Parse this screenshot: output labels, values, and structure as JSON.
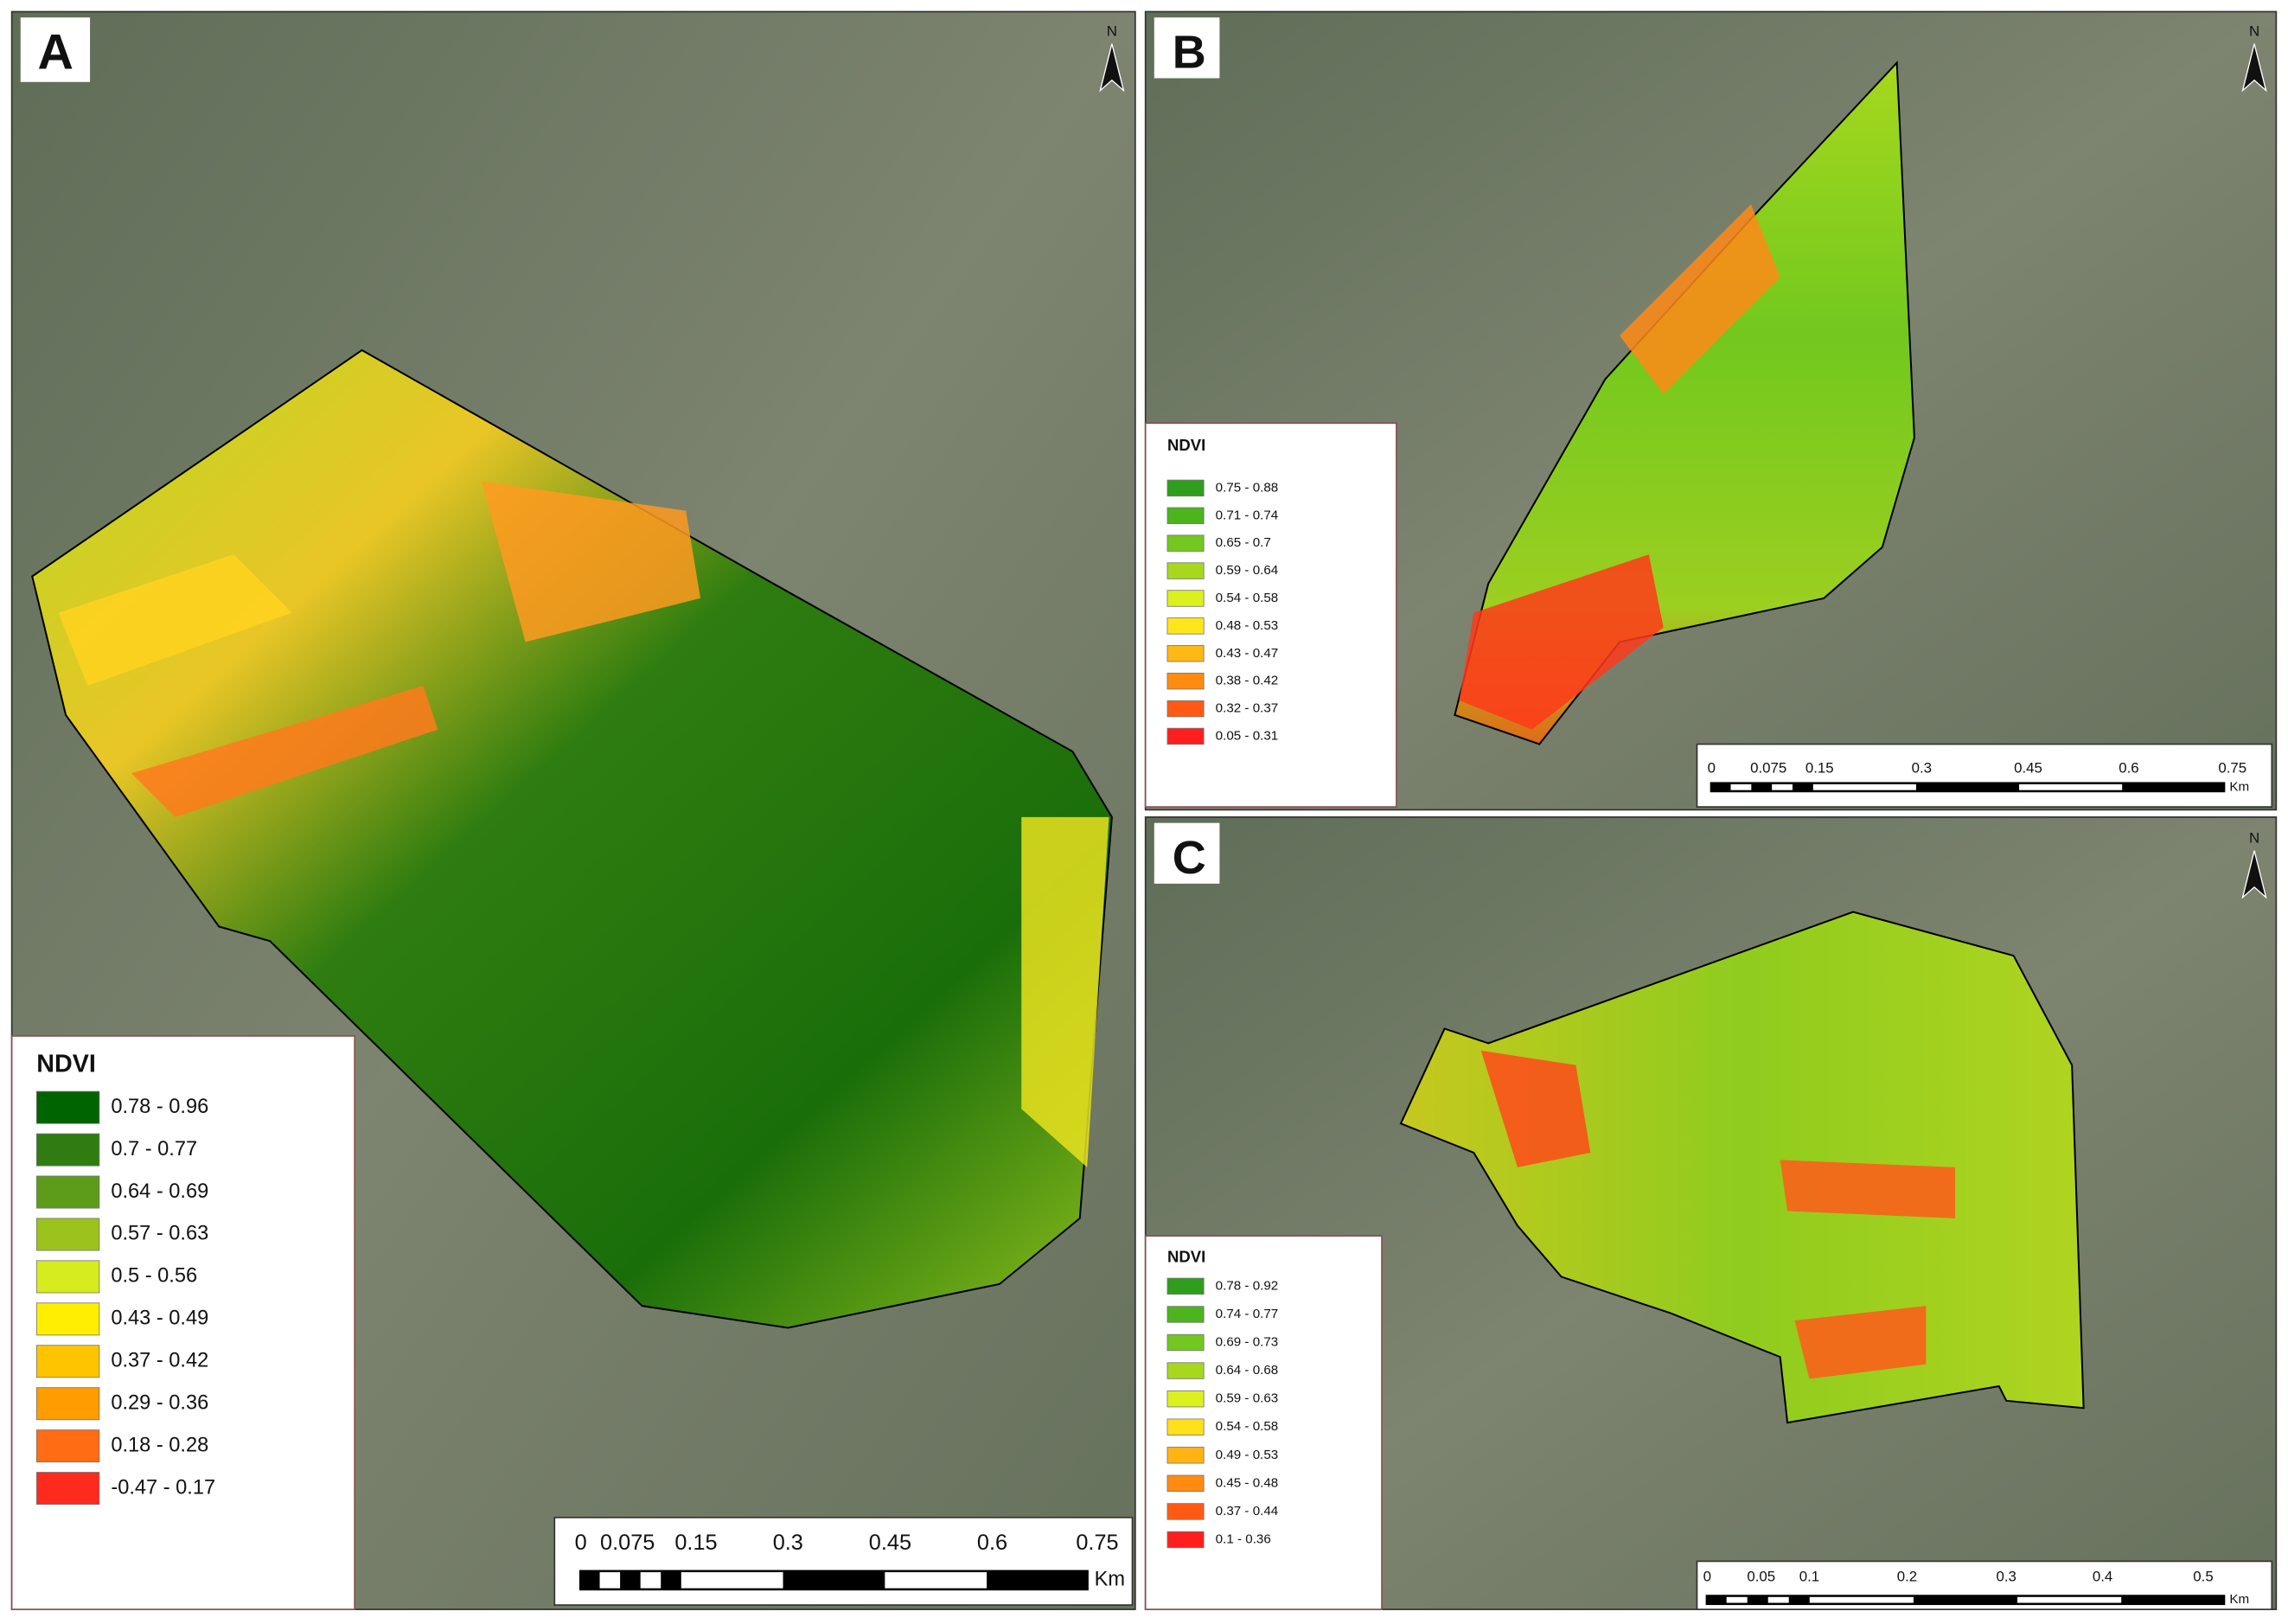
{
  "panels": [
    {
      "label": "A",
      "north": "N",
      "legend": {
        "title": "NDVI",
        "items": [
          {
            "label": "0.78 - 0.96",
            "color": "#006400"
          },
          {
            "label": "0.7 - 0.77",
            "color": "#2f7d10"
          },
          {
            "label": "0.64 - 0.69",
            "color": "#5c9c1a"
          },
          {
            "label": "0.57 - 0.63",
            "color": "#9cc21c"
          },
          {
            "label": "0.5 - 0.56",
            "color": "#d6ec1e"
          },
          {
            "label": "0.43 - 0.49",
            "color": "#ffee00"
          },
          {
            "label": "0.37 - 0.42",
            "color": "#ffc400"
          },
          {
            "label": "0.29 - 0.36",
            "color": "#ff9c00"
          },
          {
            "label": "0.18 - 0.28",
            "color": "#ff6c14"
          },
          {
            "label": "-0.47 - 0.17",
            "color": "#ff2a1e"
          }
        ]
      },
      "scale": {
        "labels": [
          "0",
          "0.075",
          "0.15",
          "0.3",
          "0.45",
          "0.6",
          "0.75"
        ],
        "unit": "Km"
      }
    },
    {
      "label": "B",
      "north": "N",
      "legend": {
        "title": "NDVI",
        "items": [
          {
            "label": "0.75 - 0.88",
            "color": "#2e9e1c"
          },
          {
            "label": "0.71 - 0.74",
            "color": "#4cb41c"
          },
          {
            "label": "0.65 - 0.7",
            "color": "#72c81e"
          },
          {
            "label": "0.59 - 0.64",
            "color": "#a6d81e"
          },
          {
            "label": "0.54 - 0.58",
            "color": "#dcf01e"
          },
          {
            "label": "0.48 - 0.53",
            "color": "#ffe61a"
          },
          {
            "label": "0.43 - 0.47",
            "color": "#ffb814"
          },
          {
            "label": "0.38 - 0.42",
            "color": "#ff8c10"
          },
          {
            "label": "0.32 - 0.37",
            "color": "#ff5a14"
          },
          {
            "label": "0.05 - 0.31",
            "color": "#ff1e1e"
          }
        ]
      },
      "scale": {
        "labels": [
          "0",
          "0.075",
          "0.15",
          "0.3",
          "0.45",
          "0.6",
          "0.75"
        ],
        "unit": "Km"
      }
    },
    {
      "label": "C",
      "north": "N",
      "legend": {
        "title": "NDVI",
        "items": [
          {
            "label": "0.78 - 0.92",
            "color": "#2e9e1c"
          },
          {
            "label": "0.74 - 0.77",
            "color": "#4cb41c"
          },
          {
            "label": "0.69 - 0.73",
            "color": "#72c81e"
          },
          {
            "label": "0.64 - 0.68",
            "color": "#a6d81e"
          },
          {
            "label": "0.59 - 0.63",
            "color": "#dcf01e"
          },
          {
            "label": "0.54 - 0.58",
            "color": "#ffe01a"
          },
          {
            "label": "0.49 - 0.53",
            "color": "#ffb414"
          },
          {
            "label": "0.45 - 0.48",
            "color": "#ff8c10"
          },
          {
            "label": "0.37 - 0.44",
            "color": "#ff5a14"
          },
          {
            "label": "0.1 - 0.36",
            "color": "#ff1e1e"
          }
        ]
      },
      "scale": {
        "labels": [
          "0",
          "0.05",
          "0.1",
          "0.2",
          "0.3",
          "0.4",
          "0.5"
        ],
        "unit": "Km"
      }
    }
  ]
}
